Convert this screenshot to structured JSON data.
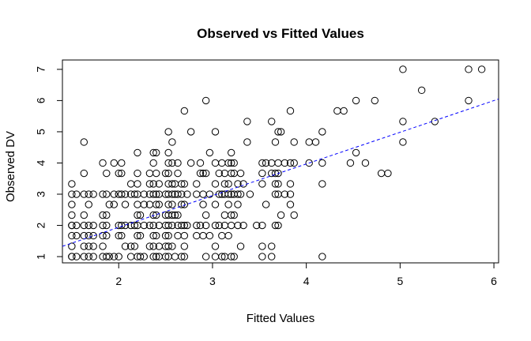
{
  "chart_data": {
    "type": "scatter",
    "title": "Observed vs Fitted Values",
    "xlabel": "Fitted Values",
    "ylabel": "Observed DV",
    "xlim": [
      1.4,
      6.05
    ],
    "ylim": [
      0.8,
      7.3
    ],
    "x_ticks": [
      2,
      3,
      4,
      5,
      6
    ],
    "y_ticks": [
      1,
      2,
      3,
      4,
      5,
      6,
      7
    ],
    "grid": false,
    "marker": "open-circle",
    "fit_line": {
      "style": "dashed",
      "color": "#0000ff",
      "x": [
        1.4,
        6.05
      ],
      "y": [
        1.33,
        6.05
      ]
    },
    "points": [
      [
        1.5,
        1.0
      ],
      [
        1.5,
        1.33
      ],
      [
        1.5,
        1.67
      ],
      [
        1.5,
        2.0
      ],
      [
        1.5,
        2.33
      ],
      [
        1.5,
        2.67
      ],
      [
        1.5,
        3.0
      ],
      [
        1.5,
        3.33
      ],
      [
        1.5,
        1.0
      ],
      [
        1.5,
        2.0
      ],
      [
        1.55,
        1.0
      ],
      [
        1.55,
        1.67
      ],
      [
        1.55,
        2.0
      ],
      [
        1.55,
        3.0
      ],
      [
        1.63,
        1.0
      ],
      [
        1.63,
        1.33
      ],
      [
        1.63,
        1.67
      ],
      [
        1.63,
        2.0
      ],
      [
        1.63,
        2.33
      ],
      [
        1.63,
        3.0
      ],
      [
        1.63,
        3.67
      ],
      [
        1.63,
        4.67
      ],
      [
        1.68,
        1.0
      ],
      [
        1.68,
        1.33
      ],
      [
        1.68,
        1.67
      ],
      [
        1.68,
        2.0
      ],
      [
        1.68,
        2.67
      ],
      [
        1.68,
        3.0
      ],
      [
        1.73,
        1.0
      ],
      [
        1.73,
        1.33
      ],
      [
        1.73,
        1.67
      ],
      [
        1.73,
        2.0
      ],
      [
        1.73,
        3.0
      ],
      [
        1.83,
        1.0
      ],
      [
        1.83,
        1.33
      ],
      [
        1.83,
        1.67
      ],
      [
        1.83,
        2.0
      ],
      [
        1.83,
        2.33
      ],
      [
        1.83,
        3.0
      ],
      [
        1.83,
        4.0
      ],
      [
        1.87,
        1.0
      ],
      [
        1.87,
        1.67
      ],
      [
        1.87,
        2.0
      ],
      [
        1.87,
        2.33
      ],
      [
        1.87,
        3.0
      ],
      [
        1.87,
        3.67
      ],
      [
        1.9,
        1.0
      ],
      [
        1.9,
        2.67
      ],
      [
        1.95,
        1.0
      ],
      [
        1.95,
        2.67
      ],
      [
        1.95,
        3.0
      ],
      [
        1.95,
        4.0
      ],
      [
        2.0,
        1.67
      ],
      [
        2.0,
        2.0
      ],
      [
        2.0,
        3.0
      ],
      [
        2.0,
        3.67
      ],
      [
        2.0,
        1.0
      ],
      [
        2.03,
        1.67
      ],
      [
        2.03,
        2.0
      ],
      [
        2.03,
        3.0
      ],
      [
        2.03,
        3.67
      ],
      [
        2.03,
        4.0
      ],
      [
        2.07,
        1.33
      ],
      [
        2.07,
        2.0
      ],
      [
        2.07,
        2.67
      ],
      [
        2.07,
        3.0
      ],
      [
        2.13,
        1.0
      ],
      [
        2.13,
        1.33
      ],
      [
        2.13,
        2.0
      ],
      [
        2.13,
        3.0
      ],
      [
        2.13,
        3.33
      ],
      [
        2.17,
        1.33
      ],
      [
        2.17,
        2.0
      ],
      [
        2.17,
        3.0
      ],
      [
        2.2,
        1.0
      ],
      [
        2.2,
        1.67
      ],
      [
        2.2,
        2.0
      ],
      [
        2.2,
        2.33
      ],
      [
        2.2,
        2.67
      ],
      [
        2.2,
        3.0
      ],
      [
        2.2,
        3.33
      ],
      [
        2.2,
        3.67
      ],
      [
        2.2,
        4.33
      ],
      [
        2.23,
        1.0
      ],
      [
        2.23,
        1.67
      ],
      [
        2.23,
        2.33
      ],
      [
        2.27,
        1.0
      ],
      [
        2.27,
        2.0
      ],
      [
        2.27,
        2.67
      ],
      [
        2.27,
        3.0
      ],
      [
        2.33,
        1.33
      ],
      [
        2.33,
        2.0
      ],
      [
        2.33,
        2.67
      ],
      [
        2.33,
        3.0
      ],
      [
        2.33,
        3.33
      ],
      [
        2.33,
        3.67
      ],
      [
        2.37,
        1.0
      ],
      [
        2.37,
        1.33
      ],
      [
        2.37,
        1.67
      ],
      [
        2.37,
        2.0
      ],
      [
        2.37,
        2.33
      ],
      [
        2.37,
        3.0
      ],
      [
        2.37,
        3.33
      ],
      [
        2.37,
        4.0
      ],
      [
        2.37,
        4.33
      ],
      [
        2.4,
        1.0
      ],
      [
        2.4,
        1.67
      ],
      [
        2.4,
        2.33
      ],
      [
        2.4,
        2.67
      ],
      [
        2.4,
        3.0
      ],
      [
        2.4,
        3.67
      ],
      [
        2.4,
        4.33
      ],
      [
        2.43,
        1.0
      ],
      [
        2.43,
        1.33
      ],
      [
        2.43,
        2.0
      ],
      [
        2.43,
        2.67
      ],
      [
        2.43,
        3.0
      ],
      [
        2.43,
        3.33
      ],
      [
        2.5,
        1.0
      ],
      [
        2.5,
        1.33
      ],
      [
        2.5,
        1.67
      ],
      [
        2.5,
        2.0
      ],
      [
        2.5,
        2.33
      ],
      [
        2.5,
        3.0
      ],
      [
        2.5,
        3.67
      ],
      [
        2.53,
        1.0
      ],
      [
        2.53,
        1.33
      ],
      [
        2.53,
        1.67
      ],
      [
        2.53,
        2.0
      ],
      [
        2.53,
        2.33
      ],
      [
        2.53,
        2.67
      ],
      [
        2.53,
        3.0
      ],
      [
        2.53,
        3.33
      ],
      [
        2.53,
        3.67
      ],
      [
        2.53,
        4.0
      ],
      [
        2.53,
        4.33
      ],
      [
        2.53,
        5.0
      ],
      [
        2.57,
        1.33
      ],
      [
        2.57,
        2.0
      ],
      [
        2.57,
        2.33
      ],
      [
        2.57,
        2.67
      ],
      [
        2.57,
        3.0
      ],
      [
        2.57,
        3.33
      ],
      [
        2.57,
        4.0
      ],
      [
        2.57,
        4.67
      ],
      [
        2.6,
        1.0
      ],
      [
        2.6,
        2.33
      ],
      [
        2.6,
        3.0
      ],
      [
        2.6,
        3.33
      ],
      [
        2.63,
        1.67
      ],
      [
        2.63,
        2.0
      ],
      [
        2.63,
        2.33
      ],
      [
        2.63,
        3.0
      ],
      [
        2.63,
        3.67
      ],
      [
        2.63,
        4.0
      ],
      [
        2.67,
        1.0
      ],
      [
        2.67,
        2.0
      ],
      [
        2.67,
        2.67
      ],
      [
        2.67,
        3.0
      ],
      [
        2.67,
        3.33
      ],
      [
        2.7,
        1.0
      ],
      [
        2.7,
        1.33
      ],
      [
        2.7,
        1.67
      ],
      [
        2.7,
        2.0
      ],
      [
        2.7,
        2.67
      ],
      [
        2.7,
        3.33
      ],
      [
        2.7,
        5.67
      ],
      [
        2.73,
        2.0
      ],
      [
        2.73,
        3.0
      ],
      [
        2.77,
        4.0
      ],
      [
        2.77,
        5.0
      ],
      [
        2.83,
        1.67
      ],
      [
        2.83,
        2.0
      ],
      [
        2.83,
        3.0
      ],
      [
        2.83,
        3.33
      ],
      [
        2.87,
        2.0
      ],
      [
        2.87,
        3.67
      ],
      [
        2.87,
        4.0
      ],
      [
        2.9,
        1.67
      ],
      [
        2.9,
        2.67
      ],
      [
        2.9,
        3.0
      ],
      [
        2.9,
        3.67
      ],
      [
        2.93,
        1.0
      ],
      [
        2.93,
        2.0
      ],
      [
        2.93,
        2.33
      ],
      [
        2.93,
        3.67
      ],
      [
        2.93,
        6.0
      ],
      [
        2.97,
        1.67
      ],
      [
        2.97,
        3.0
      ],
      [
        2.97,
        4.33
      ],
      [
        3.03,
        1.0
      ],
      [
        3.03,
        1.33
      ],
      [
        3.03,
        2.0
      ],
      [
        3.03,
        2.67
      ],
      [
        3.03,
        3.33
      ],
      [
        3.03,
        4.0
      ],
      [
        3.03,
        5.0
      ],
      [
        3.07,
        2.0
      ],
      [
        3.07,
        3.0
      ],
      [
        3.07,
        3.67
      ],
      [
        3.1,
        1.0
      ],
      [
        3.1,
        1.67
      ],
      [
        3.1,
        3.0
      ],
      [
        3.1,
        4.0
      ],
      [
        3.13,
        1.0
      ],
      [
        3.13,
        2.0
      ],
      [
        3.13,
        2.33
      ],
      [
        3.13,
        3.0
      ],
      [
        3.13,
        3.33
      ],
      [
        3.13,
        3.67
      ],
      [
        3.17,
        1.67
      ],
      [
        3.17,
        2.67
      ],
      [
        3.17,
        3.0
      ],
      [
        3.17,
        3.33
      ],
      [
        3.17,
        4.0
      ],
      [
        3.2,
        1.0
      ],
      [
        3.2,
        2.0
      ],
      [
        3.2,
        2.33
      ],
      [
        3.2,
        3.0
      ],
      [
        3.2,
        3.67
      ],
      [
        3.2,
        4.0
      ],
      [
        3.2,
        4.33
      ],
      [
        3.23,
        1.0
      ],
      [
        3.23,
        2.33
      ],
      [
        3.23,
        3.0
      ],
      [
        3.23,
        3.67
      ],
      [
        3.23,
        4.0
      ],
      [
        3.27,
        2.0
      ],
      [
        3.27,
        2.67
      ],
      [
        3.27,
        3.0
      ],
      [
        3.27,
        3.33
      ],
      [
        3.3,
        1.33
      ],
      [
        3.3,
        3.0
      ],
      [
        3.3,
        3.67
      ],
      [
        3.33,
        2.0
      ],
      [
        3.33,
        3.33
      ],
      [
        3.37,
        4.67
      ],
      [
        3.37,
        5.33
      ],
      [
        3.4,
        3.0
      ],
      [
        3.47,
        2.0
      ],
      [
        3.53,
        1.0
      ],
      [
        3.53,
        1.33
      ],
      [
        3.53,
        2.0
      ],
      [
        3.53,
        3.33
      ],
      [
        3.53,
        3.67
      ],
      [
        3.53,
        4.0
      ],
      [
        3.57,
        2.67
      ],
      [
        3.57,
        4.0
      ],
      [
        3.63,
        1.0
      ],
      [
        3.63,
        1.33
      ],
      [
        3.63,
        3.67
      ],
      [
        3.63,
        4.0
      ],
      [
        3.63,
        5.33
      ],
      [
        3.67,
        2.0
      ],
      [
        3.67,
        3.0
      ],
      [
        3.67,
        3.33
      ],
      [
        3.67,
        3.67
      ],
      [
        3.67,
        4.67
      ],
      [
        3.7,
        2.0
      ],
      [
        3.7,
        3.0
      ],
      [
        3.7,
        3.33
      ],
      [
        3.7,
        3.67
      ],
      [
        3.7,
        4.0
      ],
      [
        3.7,
        5.0
      ],
      [
        3.73,
        2.33
      ],
      [
        3.73,
        5.0
      ],
      [
        3.77,
        3.0
      ],
      [
        3.77,
        4.0
      ],
      [
        3.83,
        2.67
      ],
      [
        3.83,
        3.0
      ],
      [
        3.83,
        3.33
      ],
      [
        3.83,
        4.0
      ],
      [
        3.83,
        5.67
      ],
      [
        3.87,
        2.33
      ],
      [
        3.87,
        4.0
      ],
      [
        3.87,
        4.67
      ],
      [
        4.03,
        4.0
      ],
      [
        4.03,
        4.67
      ],
      [
        4.1,
        4.67
      ],
      [
        4.17,
        1.0
      ],
      [
        4.17,
        3.33
      ],
      [
        4.17,
        4.0
      ],
      [
        4.17,
        5.0
      ],
      [
        4.33,
        5.67
      ],
      [
        4.4,
        5.67
      ],
      [
        4.47,
        4.0
      ],
      [
        4.53,
        4.33
      ],
      [
        4.53,
        6.0
      ],
      [
        4.63,
        4.0
      ],
      [
        4.73,
        6.0
      ],
      [
        4.8,
        3.67
      ],
      [
        4.87,
        3.67
      ],
      [
        5.03,
        4.67
      ],
      [
        5.03,
        5.33
      ],
      [
        5.03,
        7.0
      ],
      [
        5.23,
        6.33
      ],
      [
        5.37,
        5.33
      ],
      [
        5.73,
        6.0
      ],
      [
        5.73,
        7.0
      ],
      [
        5.87,
        7.0
      ]
    ]
  }
}
